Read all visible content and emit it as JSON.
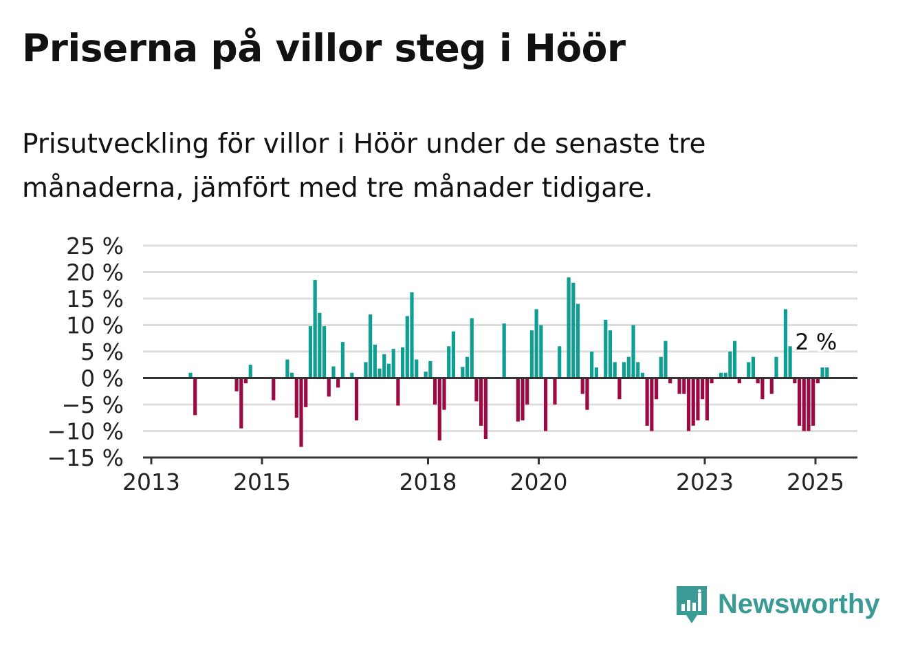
{
  "title": "Priserna på villor steg i Höör",
  "subtitle": "Prisutveckling för villor i Höör under de senaste tre månaderna, jämfört med tre månader tidigare.",
  "brand": {
    "name": "Newsworthy",
    "color": "#3a9a94",
    "icon": "newsworthy-logo-icon"
  },
  "colors": {
    "positive": "#0f9e92",
    "negative": "#9b0a43",
    "grid": "#dddddd",
    "axis": "#333333",
    "text": "#222222"
  },
  "chart_data": {
    "type": "bar",
    "xlabel": "",
    "ylabel": "",
    "ylim": [
      -15,
      25
    ],
    "yticks": [
      25,
      20,
      15,
      10,
      5,
      0,
      -5,
      -10,
      -15
    ],
    "ytick_labels": [
      "25 %",
      "20 %",
      "15 %",
      "10 %",
      "5 %",
      "0 %",
      "−5 %",
      "−10 %",
      "−15 %"
    ],
    "xticks": [
      "2013",
      "2015",
      "2018",
      "2020",
      "2023",
      "2025"
    ],
    "grid": "horizontal",
    "last_value_label": "2 %",
    "series": [
      {
        "values": [
          0,
          0,
          0,
          0,
          0,
          0,
          0,
          0,
          1,
          -7,
          0,
          0,
          0,
          0,
          0,
          0,
          0,
          0,
          -2.5,
          -9.5,
          -1,
          2.5,
          0,
          0,
          0,
          0,
          -4.2,
          0,
          0,
          3.5,
          1,
          -7.5,
          -13,
          -5.5,
          9.8,
          18.5,
          12.3,
          9.8,
          -3.5,
          2.2,
          -1.8,
          6.8,
          0,
          1,
          -8,
          0,
          3,
          12,
          6.3,
          1.8,
          4.5,
          2.7,
          5.5,
          -5.2,
          5.8,
          11.7,
          16.2,
          3.5,
          0,
          1.2,
          3.2,
          -5,
          -11.8,
          -6,
          6,
          8.8,
          0,
          2.1,
          4,
          11.3,
          -4.4,
          -9,
          -11.5,
          0,
          0,
          0,
          10.3,
          0,
          0,
          -8.2,
          -8,
          -5,
          9,
          13,
          10,
          -10,
          0,
          -5,
          6,
          0,
          19,
          18,
          14,
          -3,
          -6,
          5,
          2,
          0,
          11,
          9,
          3,
          -4,
          3,
          4,
          10,
          3,
          1,
          -9,
          -10,
          -4,
          4,
          7,
          -1,
          0,
          -3,
          -3,
          -10,
          -9,
          -8,
          -4,
          -8,
          -1,
          0,
          1,
          1,
          5,
          7,
          -1,
          0,
          3,
          4,
          -1,
          -4,
          0,
          -3,
          4,
          0,
          13,
          6,
          -1,
          -9,
          -10,
          -10,
          -9,
          -1,
          2,
          2
        ]
      }
    ]
  }
}
